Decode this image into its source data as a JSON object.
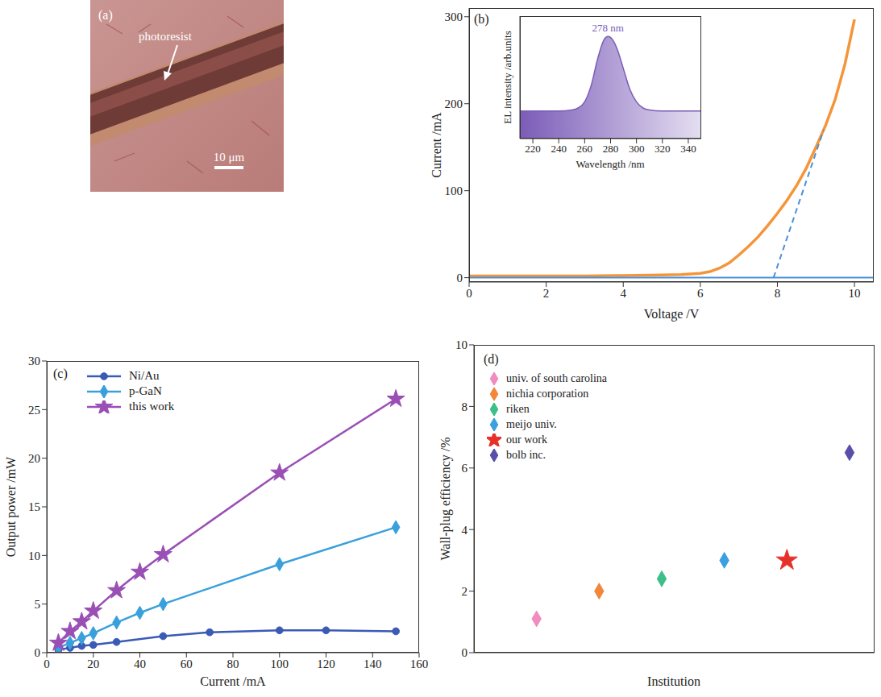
{
  "chart_data": [
    {
      "type": "image",
      "panel": "(a)",
      "annotations": [
        "photoresist",
        "10 μm"
      ]
    },
    {
      "type": "line",
      "panel": "(b)",
      "x_label": "Voltage /V",
      "y_label": "Current /mA",
      "xlim": [
        0,
        10.5
      ],
      "xticks": [
        0,
        2,
        4,
        6,
        8,
        10
      ],
      "ylim": [
        -5,
        310
      ],
      "yticks": [
        0,
        100,
        200,
        300
      ],
      "series": [
        {
          "color": "#f5953a",
          "line_style": "solid",
          "x": [
            0,
            1,
            2,
            3,
            4,
            5,
            5.5,
            6,
            6.25,
            6.5,
            6.75,
            7,
            7.25,
            7.5,
            7.75,
            8,
            8.25,
            8.5,
            8.75,
            9,
            9.25,
            9.5,
            9.75,
            10
          ],
          "values": [
            2,
            2,
            2,
            2,
            2.5,
            3,
            3.5,
            5,
            7,
            11,
            17,
            26,
            36,
            47,
            60,
            74,
            89,
            106,
            126,
            150,
            175,
            205,
            245,
            297
          ]
        },
        {
          "color": "#4a90d9",
          "line_style": "dashed",
          "x": [
            7.9,
            9.2
          ],
          "values": [
            0,
            170
          ]
        },
        {
          "color": "#4a90d9",
          "line_style": "solid",
          "x": [
            0,
            10.5
          ],
          "values": [
            0,
            0
          ]
        }
      ],
      "inset": {
        "type": "area",
        "x_label": "Wavelength /nm",
        "y_label": "EL intensity /arb.units",
        "xlim": [
          210,
          350
        ],
        "xticks": [
          220,
          240,
          260,
          280,
          300,
          320,
          340
        ],
        "ylim": [
          0,
          1.2
        ],
        "tick_labels": "x",
        "annotations": [
          "278 nm"
        ],
        "color": "#7b5cb8",
        "x": [
          210,
          220,
          230,
          240,
          250,
          255,
          260,
          265,
          270,
          275,
          278,
          282,
          285,
          290,
          295,
          300,
          305,
          310,
          320,
          330,
          340,
          350
        ],
        "values": [
          0.27,
          0.27,
          0.27,
          0.27,
          0.28,
          0.3,
          0.36,
          0.52,
          0.78,
          0.97,
          1.0,
          0.96,
          0.88,
          0.68,
          0.48,
          0.36,
          0.3,
          0.28,
          0.27,
          0.27,
          0.27,
          0.27
        ]
      }
    },
    {
      "type": "line",
      "panel": "(c)",
      "x_label": "Current /mA",
      "y_label": "Output power /mW",
      "xlim": [
        0,
        160
      ],
      "xticks": [
        0,
        20,
        40,
        60,
        80,
        100,
        120,
        140,
        160
      ],
      "ylim": [
        0,
        30
      ],
      "yticks": [
        0,
        5,
        10,
        15,
        20,
        25,
        30
      ],
      "legend": "upper left",
      "series": [
        {
          "name": "Ni/Au",
          "color": "#3a5bb5",
          "marker": "circle",
          "x": [
            5,
            10,
            15,
            20,
            30,
            50,
            70,
            100,
            120,
            150
          ],
          "values": [
            0.3,
            0.5,
            0.7,
            0.8,
            1.1,
            1.7,
            2.1,
            2.3,
            2.3,
            2.2
          ]
        },
        {
          "name": "p-GaN",
          "color": "#3aa0dc",
          "marker": "diamond",
          "x": [
            5,
            10,
            15,
            20,
            30,
            40,
            50,
            100,
            150
          ],
          "values": [
            0.5,
            1.0,
            1.5,
            2.0,
            3.1,
            4.1,
            5.0,
            9.1,
            12.9
          ]
        },
        {
          "name": "this work",
          "color": "#9a4fb5",
          "marker": "star",
          "x": [
            5,
            10,
            15,
            20,
            30,
            40,
            50,
            100,
            150
          ],
          "values": [
            1.0,
            2.2,
            3.2,
            4.3,
            6.4,
            8.3,
            10.1,
            18.5,
            26.1
          ]
        }
      ]
    },
    {
      "type": "scatter",
      "panel": "(d)",
      "x_label": "Institution",
      "y_label": "Wall-plug efficiency /%",
      "xlim": [
        0,
        6.4
      ],
      "ylim": [
        0,
        10
      ],
      "yticks": [
        0,
        2,
        4,
        6,
        8,
        10
      ],
      "tick_labels": "y",
      "legend": "upper left",
      "series": [
        {
          "name": "univ. of south carolina",
          "color": "#f08cc0",
          "marker": "diamond",
          "x": [
            1
          ],
          "values": [
            1.1
          ]
        },
        {
          "name": "nichia corporation",
          "color": "#f0873a",
          "marker": "diamond",
          "x": [
            2
          ],
          "values": [
            2.0
          ]
        },
        {
          "name": "riken",
          "color": "#3dbf8a",
          "marker": "diamond",
          "x": [
            3
          ],
          "values": [
            2.4
          ]
        },
        {
          "name": "meijo univ.",
          "color": "#3aa0e0",
          "marker": "diamond",
          "x": [
            4
          ],
          "values": [
            3.0
          ]
        },
        {
          "name": "our work",
          "color": "#e8302a",
          "marker": "star",
          "x": [
            5
          ],
          "values": [
            3.0
          ]
        },
        {
          "name": "bolb inc.",
          "color": "#5a4fa8",
          "marker": "diamond",
          "x": [
            6
          ],
          "values": [
            6.5
          ]
        }
      ]
    }
  ]
}
